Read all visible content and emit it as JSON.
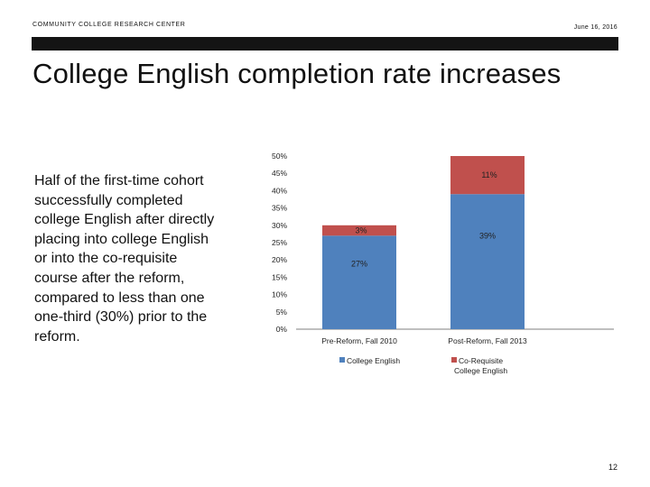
{
  "header": {
    "org": "COMMUNITY COLLEGE RESEARCH CENTER",
    "date": "June 16, 2016"
  },
  "title": "College English completion rate increases",
  "body_text": "Half of the first-time cohort successfully completed college English after directly placing into college English or into the co-requisite course after the reform, compared to less than one one-third (30%) prior to the reform.",
  "page_number": "12",
  "colors": {
    "college_english": "#4F81BD",
    "co_requisite": "#C0504D"
  },
  "chart_data": {
    "type": "bar",
    "stacked": true,
    "categories": [
      "Pre-Reform, Fall 2010",
      "Post-Reform, Fall 2013"
    ],
    "series": [
      {
        "name": "College English",
        "values": [
          27,
          39
        ],
        "labels": [
          "27%",
          "39%"
        ],
        "color": "#4F81BD"
      },
      {
        "name": "Co-Requisite College English",
        "values": [
          3,
          11
        ],
        "labels": [
          "3%",
          "11%"
        ],
        "color": "#C0504D"
      }
    ],
    "ylim": [
      0,
      50
    ],
    "yticks": [
      "0%",
      "5%",
      "10%",
      "15%",
      "20%",
      "25%",
      "30%",
      "35%",
      "40%",
      "45%",
      "50%"
    ],
    "legend_position": "bottom",
    "legend": [
      {
        "label": "College English",
        "color": "#4F81BD"
      },
      {
        "label": "Co-Requisite",
        "label_line2": "College English",
        "color": "#C0504D"
      }
    ]
  }
}
